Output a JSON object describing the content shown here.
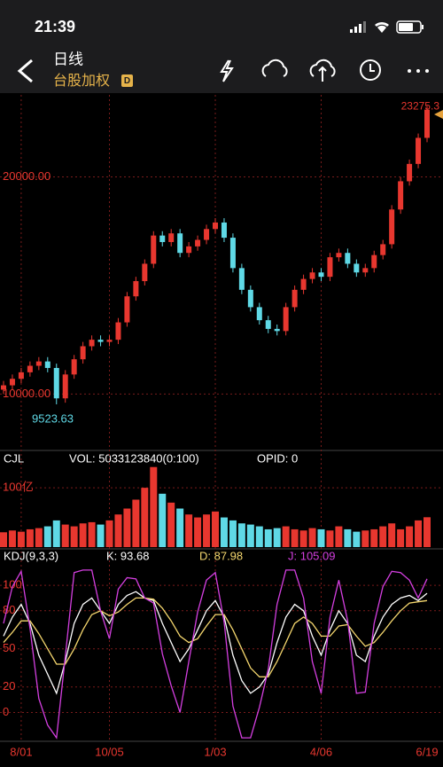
{
  "status_bar": {
    "time": "21:39"
  },
  "header": {
    "title": "日线",
    "subtitle": "台股加权",
    "badge": "D"
  },
  "chart_data": [
    {
      "type": "candlestick",
      "up_color": "#e8372f",
      "down_color": "#5fd9e6",
      "grid": true,
      "ylim": [
        7400,
        23780
      ],
      "yticks": [
        {
          "value": 10000,
          "label": "10000.00"
        },
        {
          "value": 20000,
          "label": "20000.00"
        }
      ],
      "high_label": 23275.3,
      "low_label": 9523.63,
      "ohlc": [
        [
          10200,
          10600,
          10000,
          10400
        ],
        [
          10400,
          10900,
          10200,
          10700
        ],
        [
          10700,
          11200,
          10500,
          11000
        ],
        [
          11000,
          11500,
          10800,
          11300
        ],
        [
          11300,
          11700,
          11100,
          11500
        ],
        [
          11500,
          11700,
          11000,
          11200
        ],
        [
          11200,
          11400,
          9523.63,
          9800
        ],
        [
          9800,
          11100,
          9600,
          10900
        ],
        [
          10900,
          11800,
          10700,
          11600
        ],
        [
          11600,
          12400,
          11400,
          12200
        ],
        [
          12200,
          12700,
          12000,
          12500
        ],
        [
          12500,
          12700,
          12200,
          12400
        ],
        [
          12400,
          12700,
          12200,
          12500
        ],
        [
          12500,
          13500,
          12300,
          13300
        ],
        [
          13300,
          14700,
          13100,
          14500
        ],
        [
          14500,
          15400,
          14300,
          15200
        ],
        [
          15200,
          16200,
          15000,
          16000
        ],
        [
          16000,
          17500,
          15800,
          17300
        ],
        [
          17300,
          17500,
          16800,
          17000
        ],
        [
          17000,
          17600,
          16800,
          17400
        ],
        [
          17400,
          17600,
          16300,
          16500
        ],
        [
          16500,
          17000,
          16300,
          16800
        ],
        [
          16800,
          17300,
          16600,
          17100
        ],
        [
          17100,
          17800,
          16900,
          17600
        ],
        [
          17600,
          18100,
          17400,
          17900
        ],
        [
          17900,
          18100,
          17000,
          17200
        ],
        [
          17200,
          17400,
          15600,
          15800
        ],
        [
          15800,
          16000,
          14600,
          14800
        ],
        [
          14800,
          15000,
          13800,
          14000
        ],
        [
          14000,
          14200,
          13200,
          13400
        ],
        [
          13400,
          13600,
          12800,
          13000
        ],
        [
          13000,
          13200,
          12700,
          12900
        ],
        [
          12900,
          14200,
          12700,
          14000
        ],
        [
          14000,
          15000,
          13800,
          14800
        ],
        [
          14800,
          15500,
          14600,
          15300
        ],
        [
          15300,
          15800,
          15100,
          15600
        ],
        [
          15600,
          15800,
          15200,
          15400
        ],
        [
          15400,
          16500,
          15200,
          16300
        ],
        [
          16300,
          16700,
          16100,
          16500
        ],
        [
          16500,
          16700,
          15800,
          16000
        ],
        [
          16000,
          16200,
          15400,
          15600
        ],
        [
          15600,
          16000,
          15400,
          15800
        ],
        [
          15800,
          16600,
          15600,
          16400
        ],
        [
          16400,
          17100,
          16200,
          16900
        ],
        [
          16900,
          18700,
          16700,
          18500
        ],
        [
          18500,
          20000,
          18300,
          19800
        ],
        [
          19800,
          20800,
          19600,
          20600
        ],
        [
          20600,
          22000,
          20400,
          21800
        ],
        [
          21800,
          23275.3,
          21600,
          23100
        ]
      ]
    },
    {
      "type": "bar",
      "title": "CJL",
      "subtitle": "VOL: 5033123840(0:100)",
      "note": "OPID: 0",
      "ylim": [
        0,
        16000000000
      ],
      "yticks": [
        {
          "value": 10000000000,
          "label": "100亿"
        }
      ],
      "values": [
        2500000000.0,
        2800000000.0,
        2600000000.0,
        3000000000.0,
        3200000000.0,
        3500000000.0,
        4500000000.0,
        3800000000.0,
        3500000000.0,
        4000000000.0,
        4200000000.0,
        3800000000.0,
        4500000000.0,
        5500000000.0,
        6500000000.0,
        8000000000.0,
        10000000000.0,
        13500000000.0,
        9000000000.0,
        7500000000.0,
        6500000000.0,
        5500000000.0,
        5000000000.0,
        5500000000.0,
        6000000000.0,
        5000000000.0,
        4500000000.0,
        4000000000.0,
        3800000000.0,
        3500000000.0,
        3000000000.0,
        3200000000.0,
        3500000000.0,
        3000000000.0,
        2800000000.0,
        3200000000.0,
        3000000000.0,
        2800000000.0,
        3500000000.0,
        3000000000.0,
        2600000000.0,
        2800000000.0,
        3000000000.0,
        3500000000.0,
        4000000000.0,
        3000000000.0,
        3500000000.0,
        4500000000.0,
        5033123840
      ]
    },
    {
      "type": "line",
      "title": "KDJ(9,3,3)",
      "ylim": [
        -22,
        114
      ],
      "yticks": [
        0,
        20,
        50,
        80,
        100
      ],
      "categories": [
        null,
        null,
        "8/01",
        null,
        null,
        null,
        null,
        null,
        null,
        null,
        null,
        null,
        "10/05",
        null,
        null,
        null,
        null,
        null,
        null,
        null,
        null,
        null,
        null,
        null,
        "1/03",
        null,
        null,
        null,
        null,
        null,
        null,
        null,
        null,
        null,
        null,
        null,
        "4/06",
        null,
        null,
        null,
        null,
        null,
        null,
        null,
        null,
        null,
        null,
        null,
        "6/19"
      ],
      "series": [
        {
          "name": "K: 93.68",
          "color": "#ffffff",
          "values": [
            60,
            75,
            85,
            70,
            45,
            30,
            15,
            40,
            70,
            85,
            90,
            80,
            70,
            85,
            92,
            95,
            90,
            88,
            70,
            55,
            40,
            50,
            65,
            80,
            88,
            75,
            45,
            25,
            15,
            20,
            30,
            55,
            75,
            85,
            80,
            60,
            45,
            65,
            80,
            70,
            45,
            40,
            60,
            75,
            85,
            90,
            92,
            88,
            93.68
          ]
        },
        {
          "name": "D: 87.98",
          "color": "#f5d76e",
          "values": [
            55,
            63,
            72,
            72,
            62,
            50,
            38,
            38,
            50,
            65,
            77,
            80,
            76,
            79,
            85,
            90,
            90,
            89,
            82,
            72,
            60,
            55,
            58,
            68,
            77,
            77,
            65,
            50,
            35,
            28,
            28,
            40,
            55,
            70,
            75,
            70,
            60,
            60,
            68,
            69,
            60,
            52,
            55,
            63,
            72,
            80,
            86,
            87,
            87.98
          ]
        },
        {
          "name": "J: 105.09",
          "color": "#d43fe0",
          "values": [
            70,
            99,
            111,
            66,
            11,
            -10,
            -20,
            44,
            110,
            112,
            112,
            80,
            58,
            97,
            106,
            105,
            90,
            86,
            46,
            21,
            0,
            40,
            79,
            104,
            110,
            71,
            5,
            -20,
            -20,
            4,
            34,
            85,
            112,
            112,
            90,
            40,
            15,
            75,
            104,
            72,
            15,
            16,
            70,
            99,
            111,
            110,
            104,
            90,
            105.09
          ]
        }
      ]
    }
  ]
}
